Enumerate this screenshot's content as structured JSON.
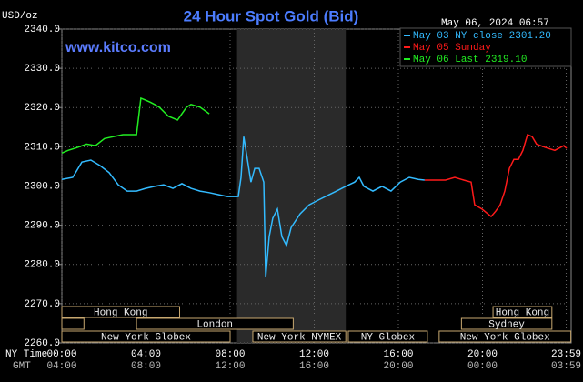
{
  "chart_data": {
    "type": "line",
    "title": "24 Hour Spot Gold (Bid)",
    "unit_label": "USD/oz",
    "watermark": "www.kitco.com",
    "timestamp": "May 06, 2024 06:57",
    "x_axis_label": "NY Time",
    "x2_axis_label": "GMT",
    "xlim": [
      0,
      24
    ],
    "ylim": [
      2260,
      2340
    ],
    "yticks": [
      {
        "value": 2260,
        "label": "2260.0"
      },
      {
        "value": 2270,
        "label": "2270.0"
      },
      {
        "value": 2280,
        "label": "2280.0"
      },
      {
        "value": 2290,
        "label": "2290.0"
      },
      {
        "value": 2300,
        "label": "2300.0"
      },
      {
        "value": 2310,
        "label": "2310.0"
      },
      {
        "value": 2320,
        "label": "2320.0"
      },
      {
        "value": 2330,
        "label": "2330.0"
      },
      {
        "value": 2340,
        "label": "2340.0"
      }
    ],
    "xticks": [
      {
        "value": 0,
        "label": "00:00"
      },
      {
        "value": 4,
        "label": "04:00"
      },
      {
        "value": 8,
        "label": "08:00"
      },
      {
        "value": 12,
        "label": "12:00"
      },
      {
        "value": 16,
        "label": "16:00"
      },
      {
        "value": 20,
        "label": "20:00"
      },
      {
        "value": 23.98,
        "label": "23:59"
      }
    ],
    "x2tick_labels": [
      "04:00",
      "08:00",
      "12:00",
      "16:00",
      "20:00",
      "00:00",
      "03:59"
    ],
    "grid": true,
    "shaded_xlim": [
      8.33,
      13.5
    ],
    "series": [
      {
        "name": "May 03 NY close 2301.20",
        "color": "#33bbff",
        "x": [
          0,
          0.52,
          0.95,
          1.38,
          1.82,
          2.25,
          2.68,
          3.11,
          3.55,
          3.98,
          4.41,
          4.84,
          5.28,
          5.71,
          6.14,
          6.57,
          7.01,
          7.44,
          7.87,
          8.39,
          8.52,
          8.65,
          8.82,
          8.99,
          9.17,
          9.38,
          9.6,
          9.69,
          9.86,
          10.03,
          10.25,
          10.46,
          10.68,
          10.9,
          11.33,
          11.76,
          12.19,
          12.63,
          13.06,
          13.49,
          13.92,
          14.14,
          14.36,
          14.79,
          15.22,
          15.65,
          16.09,
          16.52,
          16.95,
          17.25
        ],
        "values": [
          2301.7,
          2302.2,
          2306.1,
          2306.6,
          2305.2,
          2303.4,
          2300.3,
          2298.7,
          2298.7,
          2299.4,
          2299.9,
          2300.3,
          2299.4,
          2300.6,
          2299.4,
          2298.7,
          2298.3,
          2297.8,
          2297.3,
          2297.3,
          2302.2,
          2312.6,
          2306.8,
          2301.0,
          2304.5,
          2304.5,
          2301.0,
          2276.7,
          2287.1,
          2291.8,
          2294.1,
          2287.1,
          2284.8,
          2289.4,
          2292.9,
          2295.2,
          2296.4,
          2297.6,
          2298.7,
          2299.9,
          2301.0,
          2302.2,
          2299.9,
          2298.7,
          2299.9,
          2298.7,
          2301.0,
          2302.2,
          2301.7,
          2301.5
        ]
      },
      {
        "name": "May 05 Sunday",
        "color": "#ff1a1a",
        "x": [
          17.25,
          18.24,
          18.68,
          19.11,
          19.46,
          19.63,
          19.98,
          20.41,
          20.63,
          20.84,
          21.06,
          21.28,
          21.49,
          21.71,
          21.92,
          22.14,
          22.36,
          22.57,
          23.0,
          23.44,
          23.87,
          24.0
        ],
        "values": [
          2301.5,
          2301.5,
          2302.2,
          2301.5,
          2301.0,
          2295.2,
          2294.1,
          2292.2,
          2293.6,
          2295.2,
          2298.7,
          2304.5,
          2306.8,
          2306.8,
          2309.1,
          2313.1,
          2312.6,
          2310.7,
          2309.8,
          2309.1,
          2310.3,
          2309.6
        ]
      },
      {
        "name": "May 06 Last 2319.10",
        "color": "#22ee22",
        "x": [
          0,
          0.3,
          0.73,
          1.17,
          1.6,
          2.03,
          2.46,
          2.9,
          3.55,
          3.76,
          3.98,
          4.19,
          4.41,
          4.63,
          5.06,
          5.5,
          5.71,
          5.93,
          6.14,
          6.57,
          7.01
        ],
        "values": [
          2308.4,
          2309.1,
          2309.8,
          2310.7,
          2310.3,
          2312.1,
          2312.6,
          2313.1,
          2313.1,
          2322.4,
          2321.9,
          2321.4,
          2320.8,
          2320.1,
          2317.8,
          2316.8,
          2318.4,
          2320.1,
          2320.8,
          2320.1,
          2318.4
        ]
      }
    ],
    "sessions": [
      [
        {
          "label": "Hong Kong",
          "start": 0,
          "end": 5.6
        },
        {
          "label": "Hong Kong",
          "start": 20.5,
          "end": 23.3
        }
      ],
      [
        {
          "label": null,
          "start": 0,
          "end": 1.05
        },
        {
          "label": "London",
          "start": 3.55,
          "end": 11
        },
        {
          "label": "Sydney",
          "start": 19,
          "end": 23.3
        }
      ],
      [
        {
          "label": "New York Globex",
          "start": 0,
          "end": 8
        },
        {
          "label": "New York NYMEX",
          "start": 9.08,
          "end": 13.5
        },
        {
          "label": "NY Globex",
          "start": 13.62,
          "end": 17.38
        },
        {
          "label": "New York Globex",
          "start": 17.94,
          "end": 24.2
        }
      ]
    ]
  }
}
